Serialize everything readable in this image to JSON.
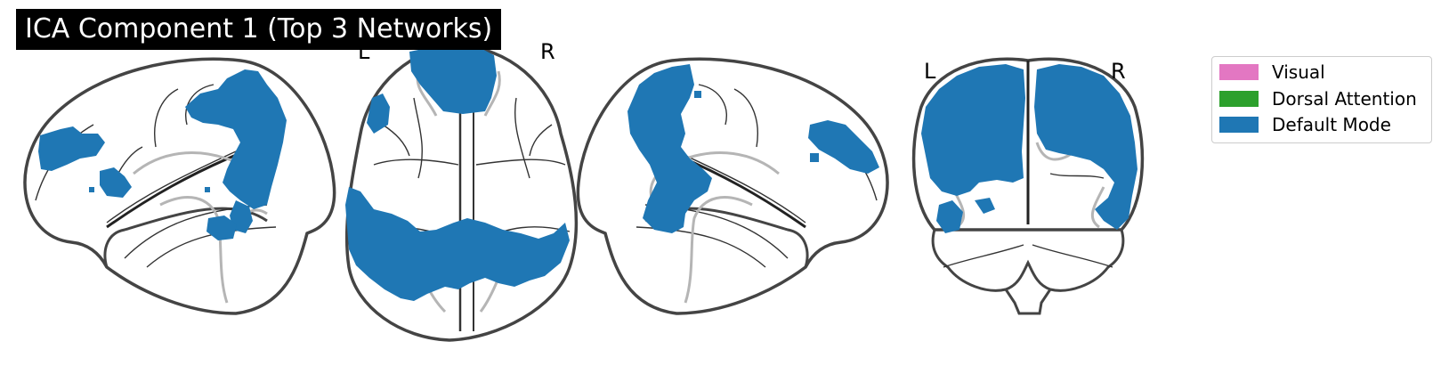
{
  "title": "ICA Component 1 (Top 3 Networks)",
  "views": [
    {
      "name": "sagittal-left"
    },
    {
      "name": "axial",
      "left_label": "L",
      "right_label": "R"
    },
    {
      "name": "sagittal-right"
    },
    {
      "name": "coronal",
      "left_label": "L",
      "right_label": "R"
    }
  ],
  "legend": {
    "items": [
      {
        "label": "Visual",
        "color": "#e377c2"
      },
      {
        "label": "Dorsal Attention",
        "color": "#2ca02c"
      },
      {
        "label": "Default Mode",
        "color": "#1f77b4"
      }
    ]
  },
  "colors": {
    "default_mode": "#1f77b4",
    "outline": "#444444",
    "sulci": "#333333",
    "subcortical": "#b5b5b5"
  }
}
